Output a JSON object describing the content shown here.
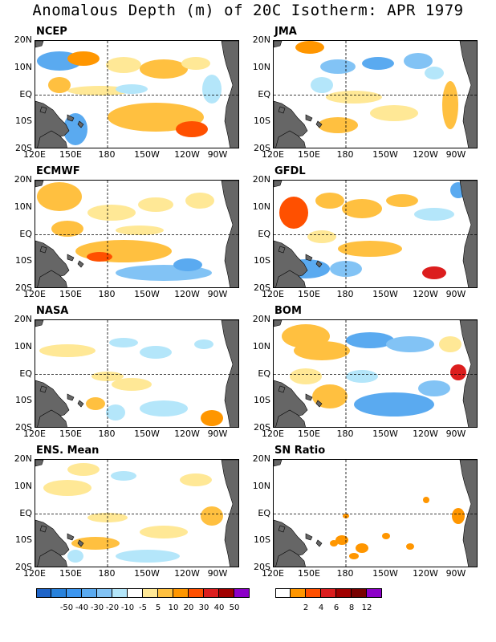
{
  "title": "Anomalous Depth (m) of 20C Isotherm: APR 1979",
  "lat_labels": [
    "20N",
    "10N",
    "EQ",
    "10S",
    "20S"
  ],
  "lon_labels": [
    "120E",
    "150E",
    "180",
    "150W",
    "120W",
    "90W"
  ],
  "panels": [
    {
      "name": "NCEP"
    },
    {
      "name": "JMA"
    },
    {
      "name": "ECMWF"
    },
    {
      "name": "GFDL"
    },
    {
      "name": "NASA"
    },
    {
      "name": "BOM"
    },
    {
      "name": "ENS. Mean"
    },
    {
      "name": "SN Ratio"
    }
  ],
  "colorbar_anomaly": {
    "labels": [
      "-50",
      "-40",
      "-30",
      "-20",
      "-10",
      "-5",
      "5",
      "10",
      "20",
      "30",
      "40",
      "50"
    ],
    "colors": [
      "#1e64c8",
      "#2882dc",
      "#3c96f0",
      "#5aaaf0",
      "#82c3f5",
      "#b4e6fa",
      "#ffffff",
      "#ffe896",
      "#ffc040",
      "#ff9600",
      "#ff5000",
      "#dc1e1e",
      "#a00000",
      "#8c00c8"
    ]
  },
  "colorbar_ratio": {
    "labels": [
      "2",
      "4",
      "6",
      "8",
      "12"
    ],
    "colors": [
      "#ffffff",
      "#ff9600",
      "#ff5000",
      "#dc1e1e",
      "#a00000",
      "#780000",
      "#8c00c8"
    ]
  }
}
